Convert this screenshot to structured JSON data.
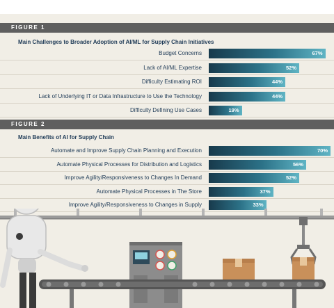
{
  "chart_data": [
    {
      "type": "bar",
      "orientation": "horizontal",
      "figure_label": "FIGURE 1",
      "title": "Main Challenges to Broader Adoption of AI/ML for Supply Chain Initiatives",
      "categories": [
        "Budget Concerns",
        "Lack of AI/ML Expertise",
        "Difficulty Estimating ROI",
        "Lack of Underlying IT or Data Infrastructure to Use the Technology",
        "Difficulty Defining Use Cases"
      ],
      "values": [
        67,
        52,
        44,
        44,
        19
      ],
      "value_labels": [
        "67%",
        "52%",
        "44%",
        "44%",
        "19%"
      ],
      "xlim": [
        0,
        100
      ]
    },
    {
      "type": "bar",
      "orientation": "horizontal",
      "figure_label": "FIGURE 2",
      "title": "Main Benefits of AI for Supply Chain",
      "categories": [
        "Automate and Improve Supply Chain Planning and Execution",
        "Automate Physical Processes for Distribution and Logistics",
        "Improve Agility/Responsiveness to Changes In Demand",
        "Automate Physical Processes in The Store",
        "Improve Agility/Responsiveness to Changes in Supply"
      ],
      "values": [
        70,
        56,
        52,
        37,
        33
      ],
      "value_labels": [
        "70%",
        "56%",
        "52%",
        "37%",
        "33%"
      ],
      "xlim": [
        0,
        100
      ]
    }
  ],
  "colors": {
    "bar_dark": "#183a4c",
    "bar_light": "#5fb4c4",
    "header_bg": "#5f5f5f",
    "title_text": "#1f3b57",
    "background": "#f1eee6"
  }
}
